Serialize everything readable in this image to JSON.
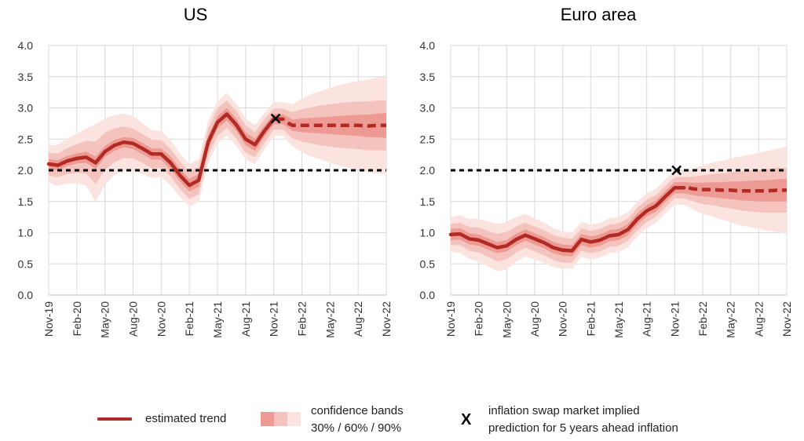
{
  "colors": {
    "trend": "#b22a24",
    "band30": "#ec9a93",
    "band60": "#f5c3bd",
    "band90": "#fbe3e0",
    "target": "#000000",
    "grid": "#d9d9d9"
  },
  "legend": {
    "trend_label": "estimated trend",
    "bands_label_1": "confidence bands",
    "bands_label_2": "30% / 60% / 90%",
    "marker_symbol": "X",
    "marker_label_1": "inflation swap market implied",
    "marker_label_2": "prediction for 5 years ahead inflation"
  },
  "chart_data": [
    {
      "type": "line",
      "title": "US",
      "ylim": [
        0,
        4
      ],
      "yticks": [
        "0.0",
        "0.5",
        "1.0",
        "1.5",
        "2.0",
        "2.5",
        "3.0",
        "3.5",
        "4.0"
      ],
      "xticks": [
        "Nov-19",
        "Feb-20",
        "May-20",
        "Aug-20",
        "Nov-20",
        "Feb-21",
        "May-21",
        "Aug-21",
        "Nov-21",
        "Feb-22",
        "May-22",
        "Aug-22",
        "Nov-22"
      ],
      "grid": true,
      "target": 2.0,
      "estimated_trend": {
        "x": [
          0,
          1,
          2,
          3,
          4,
          5,
          6,
          7,
          8,
          9,
          10,
          11,
          12,
          13,
          14,
          15,
          16,
          17,
          18,
          19,
          20,
          21,
          22,
          23,
          24,
          25
        ],
        "y": [
          2.1,
          2.08,
          2.15,
          2.19,
          2.21,
          2.12,
          2.3,
          2.4,
          2.45,
          2.43,
          2.35,
          2.26,
          2.26,
          2.12,
          1.92,
          1.76,
          1.84,
          2.45,
          2.77,
          2.9,
          2.73,
          2.5,
          2.41,
          2.63,
          2.82,
          2.82
        ]
      },
      "forecast": {
        "x": [
          25.5,
          26,
          27,
          28,
          29,
          30,
          31,
          32,
          33,
          34,
          35,
          36
        ],
        "y": [
          2.76,
          2.72,
          2.72,
          2.72,
          2.72,
          2.72,
          2.72,
          2.72,
          2.72,
          2.71,
          2.72,
          2.72
        ]
      },
      "band_halfwidths": {
        "b30": [
          0.08,
          0.08,
          0.08,
          0.08,
          0.09,
          0.1,
          0.09,
          0.09,
          0.08,
          0.09,
          0.09,
          0.09,
          0.09,
          0.1,
          0.1,
          0.1,
          0.1,
          0.1,
          0.1,
          0.1,
          0.1,
          0.1,
          0.1,
          0.09,
          0.08,
          0.08,
          0.09,
          0.11,
          0.12,
          0.13,
          0.14,
          0.15,
          0.16,
          0.17,
          0.18,
          0.19,
          0.2
        ],
        "b60": [
          0.18,
          0.19,
          0.21,
          0.23,
          0.26,
          0.34,
          0.3,
          0.27,
          0.25,
          0.24,
          0.23,
          0.23,
          0.22,
          0.22,
          0.22,
          0.22,
          0.22,
          0.22,
          0.22,
          0.22,
          0.22,
          0.22,
          0.2,
          0.19,
          0.17,
          0.17,
          0.21,
          0.26,
          0.29,
          0.32,
          0.34,
          0.36,
          0.37,
          0.38,
          0.39,
          0.4,
          0.4
        ],
        "b90": [
          0.3,
          0.33,
          0.36,
          0.4,
          0.46,
          0.62,
          0.53,
          0.48,
          0.46,
          0.44,
          0.41,
          0.38,
          0.37,
          0.36,
          0.35,
          0.34,
          0.34,
          0.34,
          0.34,
          0.34,
          0.34,
          0.33,
          0.31,
          0.29,
          0.27,
          0.27,
          0.34,
          0.43,
          0.5,
          0.55,
          0.6,
          0.65,
          0.68,
          0.71,
          0.74,
          0.77,
          0.78
        ]
      },
      "implied_marker": {
        "x": 24.2,
        "y": 2.83
      }
    },
    {
      "type": "line",
      "title": "Euro area",
      "ylim": [
        0,
        4
      ],
      "yticks": [
        "0.0",
        "0.5",
        "1.0",
        "1.5",
        "2.0",
        "2.5",
        "3.0",
        "3.5",
        "4.0"
      ],
      "xticks": [
        "Nov-19",
        "Feb-20",
        "May-20",
        "Aug-20",
        "Nov-20",
        "Feb-21",
        "May-21",
        "Aug-21",
        "Nov-21",
        "Feb-22",
        "May-22",
        "Aug-22",
        "Nov-22"
      ],
      "grid": true,
      "target": 2.0,
      "estimated_trend": {
        "x": [
          0,
          1,
          2,
          3,
          4,
          5,
          6,
          7,
          8,
          9,
          10,
          11,
          12,
          13,
          14,
          15,
          16,
          17,
          18,
          19,
          20,
          21,
          22,
          23,
          24,
          25
        ],
        "y": [
          0.97,
          0.98,
          0.9,
          0.88,
          0.82,
          0.76,
          0.79,
          0.89,
          0.96,
          0.9,
          0.84,
          0.76,
          0.72,
          0.71,
          0.89,
          0.85,
          0.88,
          0.95,
          0.97,
          1.05,
          1.22,
          1.35,
          1.43,
          1.58,
          1.72,
          1.72
        ]
      },
      "forecast": {
        "x": [
          25.5,
          26,
          27,
          28,
          29,
          30,
          31,
          32,
          33,
          34,
          35,
          36
        ],
        "y": [
          1.72,
          1.7,
          1.69,
          1.69,
          1.68,
          1.68,
          1.67,
          1.67,
          1.67,
          1.67,
          1.68,
          1.68
        ]
      },
      "band_halfwidths": {
        "b30": [
          0.09,
          0.09,
          0.09,
          0.09,
          0.09,
          0.09,
          0.09,
          0.09,
          0.09,
          0.09,
          0.09,
          0.09,
          0.09,
          0.09,
          0.09,
          0.09,
          0.09,
          0.09,
          0.09,
          0.09,
          0.09,
          0.09,
          0.09,
          0.09,
          0.09,
          0.09,
          0.1,
          0.11,
          0.12,
          0.13,
          0.14,
          0.15,
          0.16,
          0.17,
          0.17,
          0.18,
          0.18
        ],
        "b60": [
          0.17,
          0.18,
          0.19,
          0.2,
          0.21,
          0.22,
          0.22,
          0.21,
          0.2,
          0.2,
          0.2,
          0.2,
          0.2,
          0.19,
          0.18,
          0.18,
          0.18,
          0.18,
          0.18,
          0.18,
          0.18,
          0.18,
          0.17,
          0.17,
          0.17,
          0.17,
          0.2,
          0.23,
          0.25,
          0.27,
          0.29,
          0.31,
          0.33,
          0.34,
          0.35,
          0.36,
          0.36
        ],
        "b90": [
          0.28,
          0.3,
          0.32,
          0.34,
          0.36,
          0.38,
          0.38,
          0.36,
          0.34,
          0.33,
          0.32,
          0.31,
          0.3,
          0.29,
          0.28,
          0.28,
          0.28,
          0.28,
          0.28,
          0.28,
          0.28,
          0.28,
          0.27,
          0.27,
          0.27,
          0.27,
          0.33,
          0.39,
          0.43,
          0.47,
          0.51,
          0.55,
          0.58,
          0.61,
          0.64,
          0.67,
          0.7
        ]
      },
      "implied_marker": {
        "x": 24.2,
        "y": 2.0
      }
    }
  ]
}
